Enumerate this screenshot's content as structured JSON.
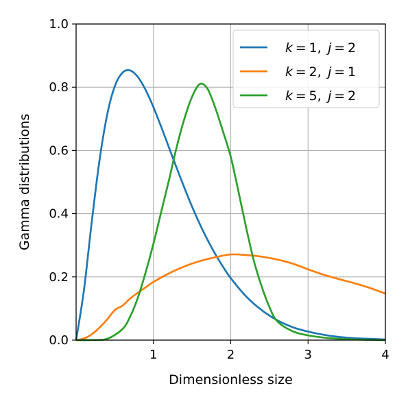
{
  "chart_data": {
    "type": "line",
    "xlabel": "Dimensionless size",
    "ylabel": "Gamma distributions",
    "xlim": [
      0,
      4
    ],
    "ylim": [
      0,
      1.0
    ],
    "xticks": [
      1,
      2,
      3,
      4
    ],
    "xtick_labels": [
      "1",
      "2",
      "3",
      "4"
    ],
    "yticks": [
      0.0,
      0.2,
      0.4,
      0.6,
      0.8,
      1.0
    ],
    "ytick_labels": [
      "0.0",
      "0.2",
      "0.4",
      "0.6",
      "0.8",
      "1.0"
    ],
    "grid": true,
    "legend_position": "top-right",
    "series": [
      {
        "name": "k = 1, j = 2",
        "legend": {
          "k": "1",
          "j": "2"
        },
        "color": "#1f77b4",
        "x": [
          0,
          0.1,
          0.2,
          0.3,
          0.4,
          0.5,
          0.6,
          0.7,
          0.8,
          0.9,
          1.0,
          1.1,
          1.2,
          1.3,
          1.4,
          1.5,
          1.6,
          1.7,
          1.8,
          1.9,
          2.0,
          2.2,
          2.4,
          2.6,
          2.8,
          3.0,
          3.2,
          3.4,
          3.6,
          3.8,
          4.0
        ],
        "y": [
          0,
          0.156,
          0.369,
          0.564,
          0.711,
          0.803,
          0.846,
          0.853,
          0.832,
          0.791,
          0.737,
          0.675,
          0.61,
          0.545,
          0.482,
          0.422,
          0.367,
          0.317,
          0.272,
          0.232,
          0.196,
          0.138,
          0.095,
          0.063,
          0.041,
          0.027,
          0.017,
          0.01,
          0.006,
          0.004,
          0.002
        ]
      },
      {
        "name": "k = 2, j = 1",
        "legend": {
          "k": "2",
          "j": "1"
        },
        "color": "#ff7f0e",
        "x": [
          0,
          0.1,
          0.2,
          0.3,
          0.4,
          0.5,
          0.6,
          0.7,
          0.8,
          0.9,
          1.0,
          1.2,
          1.4,
          1.6,
          1.8,
          2.0,
          2.2,
          2.4,
          2.6,
          2.8,
          3.0,
          3.2,
          3.4,
          3.6,
          3.8,
          4.0
        ],
        "y": [
          0,
          0.005,
          0.018,
          0.039,
          0.065,
          0.095,
          0.109,
          0.132,
          0.15,
          0.167,
          0.184,
          0.211,
          0.233,
          0.25,
          0.262,
          0.271,
          0.269,
          0.264,
          0.255,
          0.242,
          0.224,
          0.207,
          0.193,
          0.18,
          0.165,
          0.147
        ]
      },
      {
        "name": "k = 5, j = 2",
        "legend": {
          "k": "5",
          "j": "2"
        },
        "color": "#2ca02c",
        "x": [
          0,
          0.2,
          0.4,
          0.6,
          0.7,
          0.8,
          0.9,
          1.0,
          1.1,
          1.2,
          1.3,
          1.4,
          1.5,
          1.6,
          1.7,
          1.8,
          1.9,
          2.0,
          2.1,
          2.2,
          2.3,
          2.4,
          2.5,
          2.6,
          2.8,
          3.0,
          3.2,
          3.4,
          3.6,
          3.8,
          4.0
        ],
        "y": [
          0,
          0.0003,
          0.004,
          0.035,
          0.075,
          0.135,
          0.215,
          0.305,
          0.405,
          0.505,
          0.61,
          0.7,
          0.77,
          0.81,
          0.795,
          0.735,
          0.66,
          0.58,
          0.47,
          0.355,
          0.25,
          0.17,
          0.105,
          0.06,
          0.028,
          0.015,
          0.008,
          0.004,
          0.002,
          0.001,
          0.0
        ]
      }
    ]
  }
}
